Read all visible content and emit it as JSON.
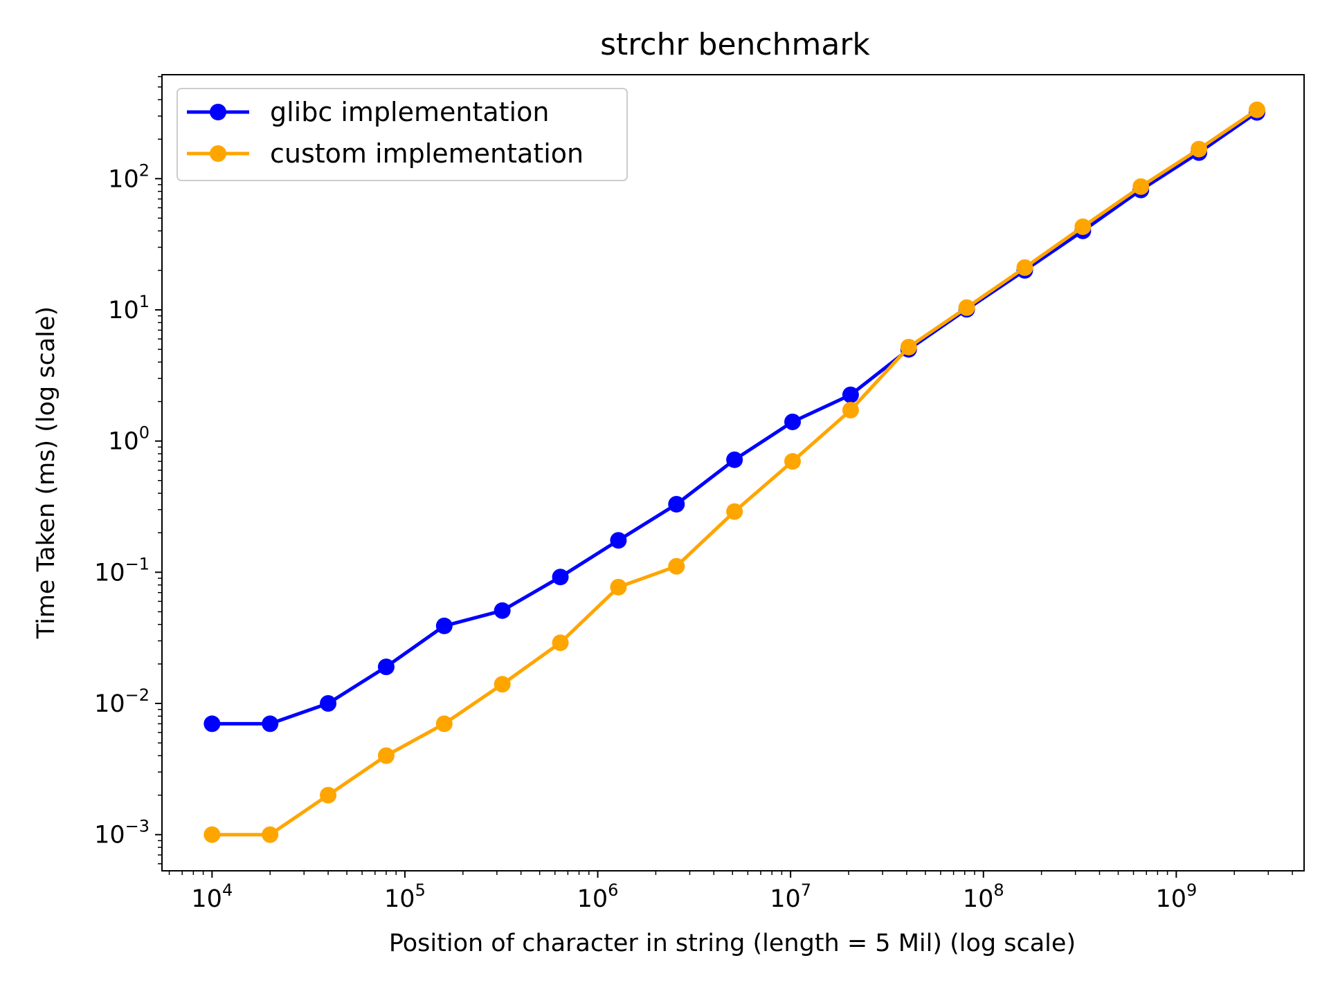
{
  "chart_data": {
    "type": "line",
    "title": "strchr benchmark",
    "xlabel": "Position of character in string (length = 5 Mil) (log scale)",
    "ylabel": "Time Taken (ms) (log scale)",
    "xscale": "log",
    "yscale": "log",
    "xlim": [
      5500.0,
      4600000000.0
    ],
    "ylim": [
      0.00053,
      620
    ],
    "grid": false,
    "legend_position": "top-left",
    "x_ticks": [
      {
        "value": 10000.0,
        "base": "10",
        "exp": "4"
      },
      {
        "value": 100000.0,
        "base": "10",
        "exp": "5"
      },
      {
        "value": 1000000.0,
        "base": "10",
        "exp": "6"
      },
      {
        "value": 10000000.0,
        "base": "10",
        "exp": "7"
      },
      {
        "value": 100000000.0,
        "base": "10",
        "exp": "8"
      },
      {
        "value": 1000000000.0,
        "base": "10",
        "exp": "9"
      }
    ],
    "y_ticks": [
      {
        "value": 0.001,
        "base": "10",
        "exp": "−3"
      },
      {
        "value": 0.01,
        "base": "10",
        "exp": "−2"
      },
      {
        "value": 0.1,
        "base": "10",
        "exp": "−1"
      },
      {
        "value": 1.0,
        "base": "10",
        "exp": "0"
      },
      {
        "value": 10.0,
        "base": "10",
        "exp": "1"
      },
      {
        "value": 100.0,
        "base": "10",
        "exp": "2"
      }
    ],
    "x": [
      10000,
      20000,
      40000,
      80000,
      160000,
      320000,
      640000,
      1280000,
      2560000,
      5120000,
      10240000,
      20480000,
      40960000,
      81920000,
      163840000,
      327680000,
      655360000,
      1310720000,
      2621440000
    ],
    "series": [
      {
        "name": "glibc implementation",
        "color": "#0000ff",
        "values": [
          0.007,
          0.007,
          0.01,
          0.019,
          0.039,
          0.051,
          0.092,
          0.175,
          0.33,
          0.72,
          1.4,
          2.25,
          5.0,
          10.1,
          20.0,
          40.0,
          82.0,
          158.0,
          320.0
        ]
      },
      {
        "name": "custom implementation",
        "color": "#ffa500",
        "values": [
          0.001,
          0.001,
          0.002,
          0.004,
          0.007,
          0.014,
          0.029,
          0.077,
          0.111,
          0.29,
          0.7,
          1.72,
          5.2,
          10.4,
          21.0,
          43.0,
          87.0,
          168.0,
          335.0
        ]
      }
    ]
  }
}
